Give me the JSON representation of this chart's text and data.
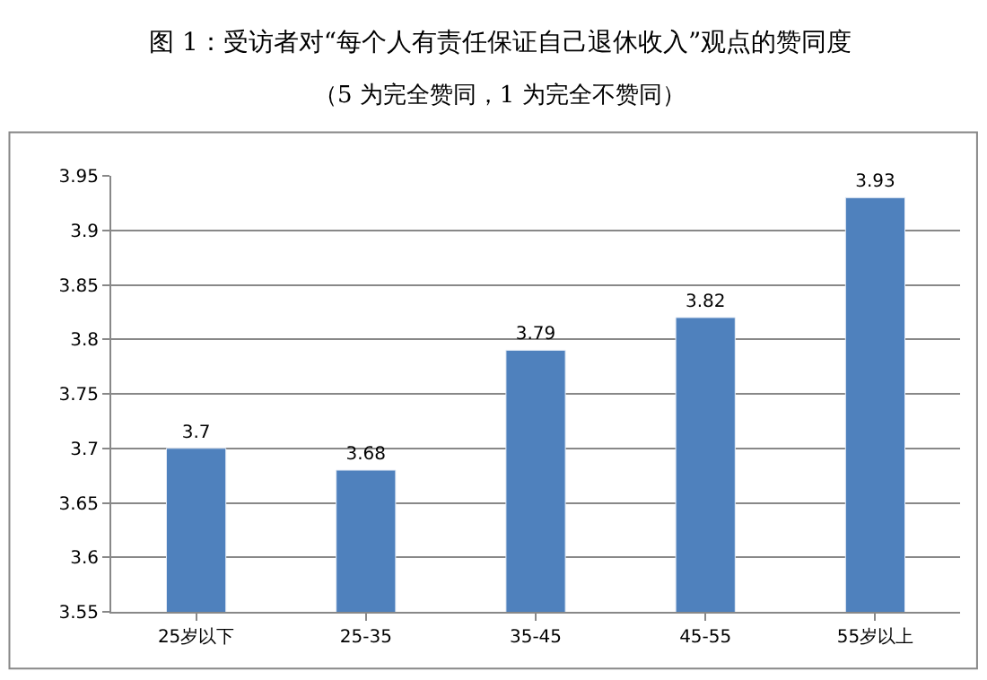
{
  "chart_data": {
    "type": "bar",
    "title": "图 1：受访者对“每个人有责任保证自己退休收入”观点的赞同度",
    "subtitle": "（5 为完全赞同，1 为完全不赞同）",
    "categories": [
      "25岁以下",
      "25-35",
      "35-45",
      "45-55",
      "55岁以上"
    ],
    "values": [
      3.7,
      3.68,
      3.79,
      3.82,
      3.93
    ],
    "color": "#4f81bd",
    "ylim": [
      3.55,
      3.95
    ],
    "yticks": [
      3.55,
      3.6,
      3.65,
      3.7,
      3.75,
      3.8,
      3.85,
      3.9,
      3.95
    ],
    "grid": "y",
    "data_labels": true,
    "legend": false
  }
}
